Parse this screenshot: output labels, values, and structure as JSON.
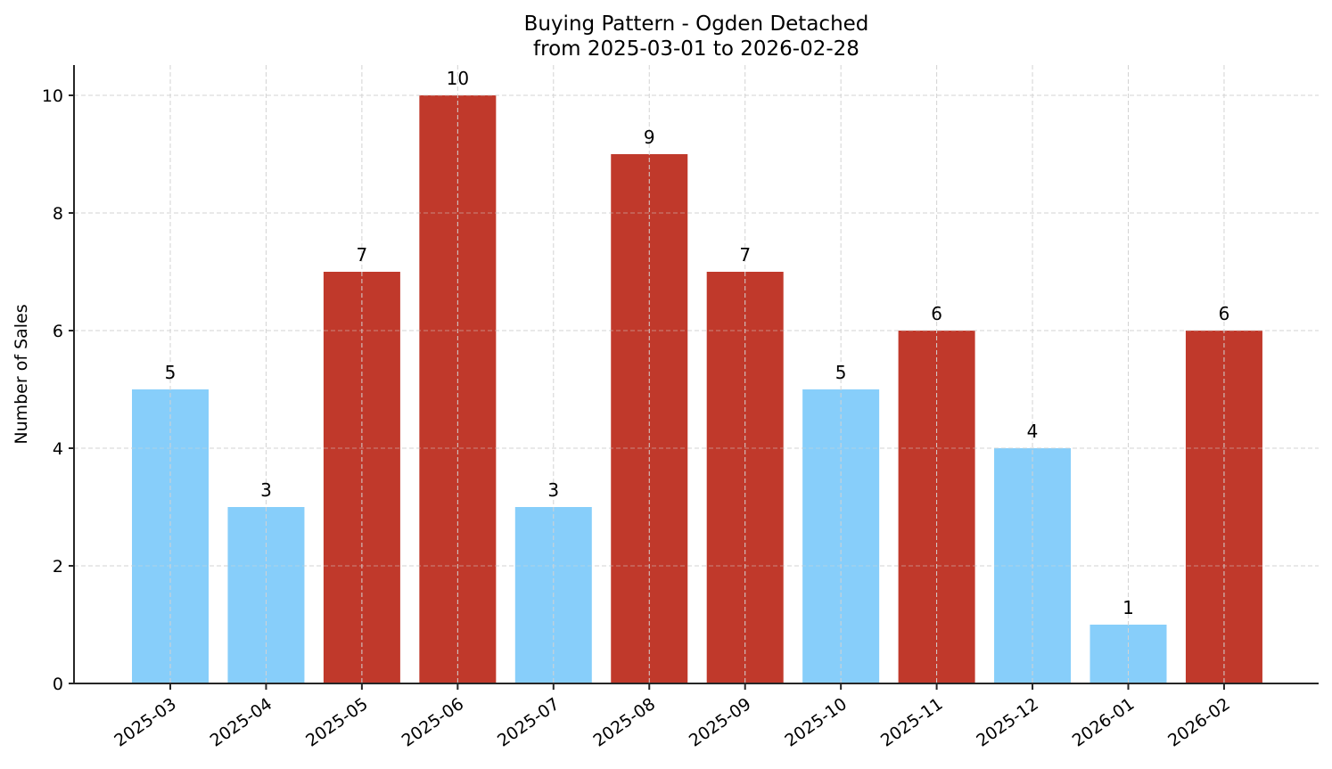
{
  "chart_data": {
    "type": "bar",
    "title": "Buying Pattern - Ogden Detached",
    "subtitle": "from 2025-03-01 to 2026-02-28",
    "xlabel": "",
    "ylabel": "Number of Sales",
    "categories": [
      "2025-03",
      "2025-04",
      "2025-05",
      "2025-06",
      "2025-07",
      "2025-08",
      "2025-09",
      "2025-10",
      "2025-11",
      "2025-12",
      "2026-01",
      "2026-02"
    ],
    "values": [
      5,
      3,
      7,
      10,
      3,
      9,
      7,
      5,
      6,
      4,
      1,
      6
    ],
    "bar_colors": [
      "#87CEFA",
      "#87CEFA",
      "#C0392B",
      "#C0392B",
      "#87CEFA",
      "#C0392B",
      "#C0392B",
      "#87CEFA",
      "#C0392B",
      "#87CEFA",
      "#87CEFA",
      "#C0392B"
    ],
    "color_legend_note": "red = above-average months, light blue = at/below-average months (no legend shown)",
    "ylim": [
      0,
      10.5
    ],
    "yticks": [
      0,
      2,
      4,
      6,
      8,
      10
    ],
    "grid": true,
    "legend": "none",
    "data_labels": true,
    "xtick_rotation": 35
  },
  "colors": {
    "high": "#C0392B",
    "low": "#87CEFA",
    "grid": "#d3d3d3",
    "axis": "#262626"
  }
}
